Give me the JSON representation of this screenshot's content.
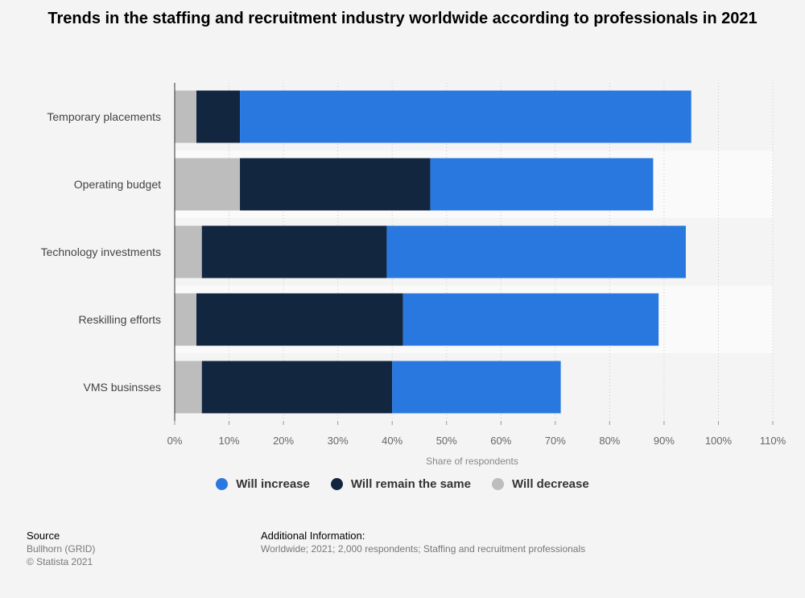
{
  "title": "Trends in the staffing and recruitment industry worldwide according to professionals in 2021",
  "chart_data": {
    "type": "bar",
    "orientation": "horizontal",
    "stacked": true,
    "categories": [
      "Temporary placements",
      "Operating budget",
      "Technology investments",
      "Reskilling efforts",
      "VMS businsses"
    ],
    "series": [
      {
        "name": "Will decrease",
        "color": "#bdbdbd",
        "values": [
          4,
          12,
          5,
          4,
          5
        ]
      },
      {
        "name": "Will remain the same",
        "color": "#12263f",
        "values": [
          8,
          35,
          34,
          38,
          35
        ]
      },
      {
        "name": "Will increase",
        "color": "#2878df",
        "values": [
          83,
          41,
          55,
          47,
          31
        ]
      }
    ],
    "xlim": [
      0,
      110
    ],
    "xticks": [
      "0%",
      "10%",
      "20%",
      "30%",
      "40%",
      "50%",
      "60%",
      "70%",
      "80%",
      "90%",
      "100%",
      "110%"
    ],
    "xlabel": "Share of respondents",
    "ylabel": "",
    "legend_position": "bottom",
    "legend_order": [
      "Will increase",
      "Will remain the same",
      "Will decrease"
    ],
    "grid": true
  },
  "source": {
    "heading": "Source",
    "lines": [
      "Bullhorn (GRID)",
      "© Statista 2021"
    ]
  },
  "additional_info": {
    "heading": "Additional Information:",
    "text": "Worldwide; 2021; 2,000 respondents; Staffing and recruitment professionals"
  }
}
